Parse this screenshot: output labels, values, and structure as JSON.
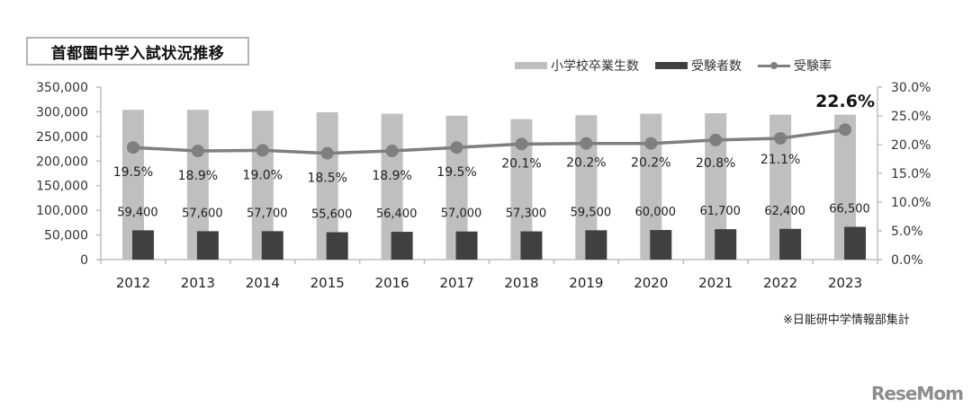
{
  "title": "首都圏中学入試状況推移",
  "legend": {
    "graduates_label": "小学校卒業生数",
    "examinees_label": "受験者数",
    "rate_label": "受験率"
  },
  "colors": {
    "graduates": "#bfbfbf",
    "examinees": "#404040",
    "rate": "#7f7f7f",
    "axis": "#bfbfbf"
  },
  "footnote": "※日能研中学情報部集計",
  "brand": "ReseMom",
  "chart_data": {
    "type": "bar",
    "title": "首都圏中学入試状況推移",
    "xlabel": "",
    "ylabel": "",
    "categories": [
      "2012",
      "2013",
      "2014",
      "2015",
      "2016",
      "2017",
      "2018",
      "2019",
      "2020",
      "2021",
      "2022",
      "2023"
    ],
    "series": [
      {
        "name": "小学校卒業生数",
        "type": "bar",
        "axis": "left",
        "values": [
          304000,
          304000,
          302000,
          299000,
          296000,
          292000,
          285000,
          293000,
          296000,
          297000,
          294000,
          294000
        ]
      },
      {
        "name": "受験者数",
        "type": "bar",
        "axis": "left",
        "values": [
          59400,
          57600,
          57700,
          55600,
          56400,
          57000,
          57300,
          59500,
          60000,
          61700,
          62400,
          66500
        ],
        "labels": [
          "59,400",
          "57,600",
          "57,700",
          "55,600",
          "56,400",
          "57,000",
          "57,300",
          "59,500",
          "60,000",
          "61,700",
          "62,400",
          "66,500"
        ]
      },
      {
        "name": "受験率",
        "type": "line",
        "axis": "right",
        "values": [
          19.5,
          18.9,
          19.0,
          18.5,
          18.9,
          19.5,
          20.1,
          20.2,
          20.2,
          20.8,
          21.1,
          22.6
        ],
        "labels": [
          "19.5%",
          "18.9%",
          "19.0%",
          "18.5%",
          "18.9%",
          "19.5%",
          "20.1%",
          "20.2%",
          "20.2%",
          "20.8%",
          "21.1%",
          "22.6%"
        ]
      }
    ],
    "left_axis": {
      "ylim": [
        0,
        350000
      ],
      "ticks": [
        "0",
        "50,000",
        "100,000",
        "150,000",
        "200,000",
        "250,000",
        "300,000",
        "350,000"
      ]
    },
    "right_axis": {
      "ylim": [
        0,
        30
      ],
      "ticks": [
        "0.0%",
        "5.0%",
        "10.0%",
        "15.0%",
        "20.0%",
        "25.0%",
        "30.0%"
      ]
    },
    "grid": false,
    "legend_position": "top-right",
    "highlight": {
      "index": 11,
      "label": "22.6%"
    }
  }
}
